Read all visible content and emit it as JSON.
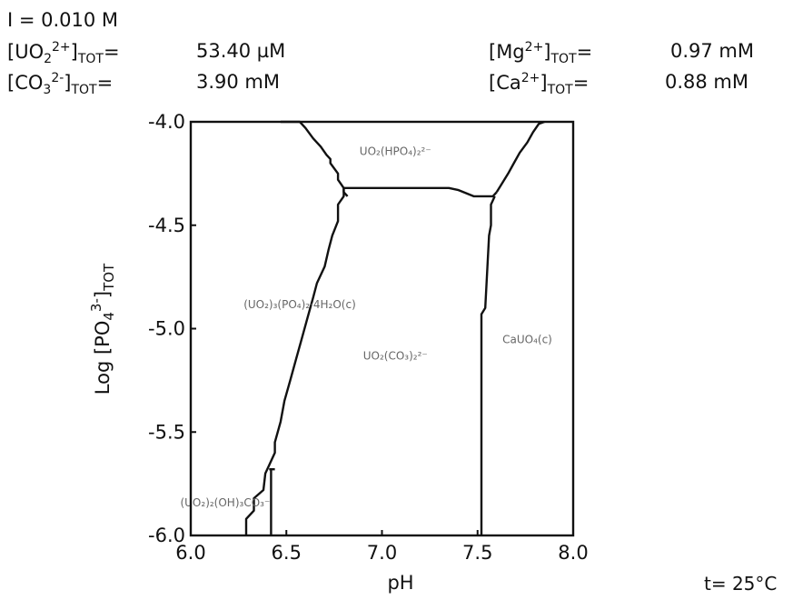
{
  "conditions": {
    "ionic_strength": "I = 0.010 M",
    "uo2_label_main": "[UO",
    "uo2_label_sub": "2",
    "uo2_label_sup": "2+",
    "uo2_label_end": "]",
    "uo2_label_tot": "TOT",
    "uo2_label_eq": "=",
    "uo2_value": "53.40 µM",
    "co3_label_main": "[CO",
    "co3_label_sub": "3",
    "co3_label_sup": "2-",
    "co3_label_end": "]",
    "co3_label_tot": "TOT",
    "co3_label_eq": "=",
    "co3_value": "3.90 mM",
    "mg_label_main": "[Mg",
    "mg_label_sup": "2+",
    "mg_label_end": "]",
    "mg_label_tot": "TOT",
    "mg_label_eq": "=",
    "mg_value": "0.97 mM",
    "ca_label_main": "[Ca",
    "ca_label_sup": "2+",
    "ca_label_end": "]",
    "ca_label_tot": "TOT",
    "ca_label_eq": "=",
    "ca_value": "0.88 mM"
  },
  "temperature": "t= 25°C",
  "chart_data": {
    "type": "line",
    "xlabel": "pH",
    "ylabel": "Log [PO4 3-]TOT",
    "ylabel_parts": {
      "main": "Log [PO",
      "sub": "4",
      "sup": "3-",
      "end": "]",
      "sub2": "TOT"
    },
    "xlim": [
      6.0,
      8.0
    ],
    "ylim": [
      -6.0,
      -4.0
    ],
    "x_ticks": [
      6.0,
      6.5,
      7.0,
      7.5,
      8.0
    ],
    "x_tick_labels": [
      "6.0",
      "6.5",
      "7.0",
      "7.5",
      "8.0"
    ],
    "y_ticks": [
      -4.0,
      -4.5,
      -5.0,
      -5.5,
      -6.0
    ],
    "y_tick_labels": [
      "-4.0",
      "-4.5",
      "-5.0",
      "-5.5",
      "-6.0"
    ],
    "grid": false,
    "series": [
      {
        "x": [
          6.29,
          6.29,
          6.33,
          6.33,
          6.38,
          6.39,
          6.41,
          6.44,
          6.44,
          6.47,
          6.49,
          6.52,
          6.55,
          6.58,
          6.61,
          6.64,
          6.66,
          6.7,
          6.72,
          6.74,
          6.77,
          6.77,
          6.8,
          6.8
        ],
        "y": [
          -6.0,
          -5.92,
          -5.88,
          -5.82,
          -5.78,
          -5.7,
          -5.66,
          -5.6,
          -5.55,
          -5.45,
          -5.35,
          -5.25,
          -5.15,
          -5.05,
          -4.95,
          -4.85,
          -4.78,
          -4.7,
          -4.62,
          -4.55,
          -4.48,
          -4.4,
          -4.36,
          -4.32
        ]
      },
      {
        "x": [
          6.42,
          6.42
        ],
        "y": [
          -6.0,
          -5.68
        ]
      },
      {
        "x": [
          6.8,
          7.35,
          7.4,
          7.48,
          7.58,
          7.6
        ],
        "y": [
          -4.32,
          -4.32,
          -4.33,
          -4.36,
          -4.36,
          -4.34
        ]
      },
      {
        "x": [
          6.41,
          6.44
        ],
        "y": [
          -5.68,
          -5.68
        ]
      },
      {
        "x": [
          6.47,
          6.52,
          6.57,
          6.6,
          6.64,
          6.68,
          6.71,
          6.73,
          6.73,
          6.77,
          6.77,
          6.8,
          6.8,
          6.82
        ],
        "y": [
          -4.0,
          -4.0,
          -4.0,
          -4.03,
          -4.08,
          -4.12,
          -4.16,
          -4.18,
          -4.2,
          -4.25,
          -4.28,
          -4.32,
          -4.34,
          -4.36
        ]
      },
      {
        "x": [
          7.52,
          7.52,
          7.54,
          7.56,
          7.57,
          7.57,
          7.59
        ],
        "y": [
          -6.0,
          -4.93,
          -4.9,
          -4.55,
          -4.5,
          -4.4,
          -4.36
        ]
      },
      {
        "x": [
          7.6,
          7.62,
          7.66,
          7.69,
          7.72,
          7.76,
          7.79,
          7.82,
          7.85
        ],
        "y": [
          -4.34,
          -4.31,
          -4.25,
          -4.2,
          -4.15,
          -4.1,
          -4.05,
          -4.01,
          -4.0
        ]
      }
    ],
    "regions": [
      {
        "label": "UO₂(HPO₄)₂²⁻",
        "x": 7.07,
        "y": -4.16
      },
      {
        "label": "(UO₂)₃(PO₄)₂·4H₂O(c)",
        "x": 6.57,
        "y": -4.9
      },
      {
        "label": "UO₂(CO₃)₂²⁻",
        "x": 7.07,
        "y": -5.15
      },
      {
        "label": "CaUO₄(c)",
        "x": 7.76,
        "y": -5.07
      },
      {
        "label": "(UO₂)₂(OH)₃CO₃⁻",
        "x": 6.18,
        "y": -5.86
      }
    ]
  }
}
